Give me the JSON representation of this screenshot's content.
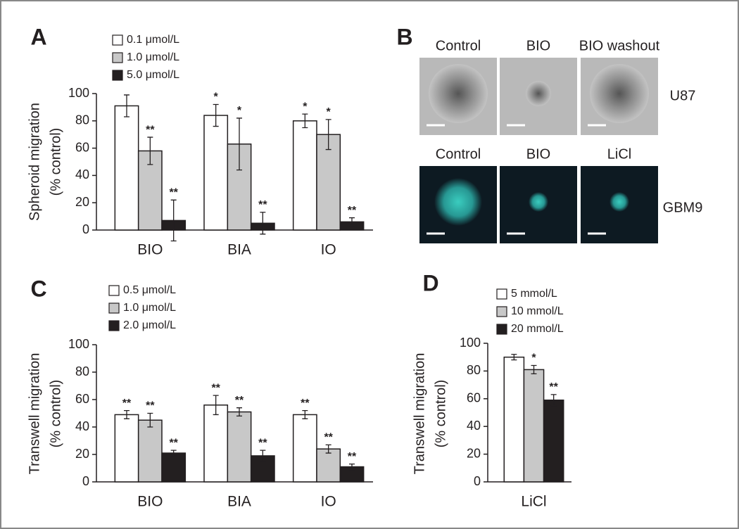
{
  "chart_data": [
    {
      "type": "bar",
      "panel": "A",
      "y_label": [
        "Spheroid migration",
        "(% control)"
      ],
      "categories": [
        "BIO",
        "BIA",
        "IO"
      ],
      "ylim": [
        0,
        100
      ],
      "yticks": [
        0,
        20,
        40,
        60,
        80,
        100
      ],
      "series": [
        {
          "name": "0.1 μmol/L",
          "color": "#ffffff",
          "values": [
            91,
            84,
            80
          ],
          "errors": [
            8,
            8,
            5
          ],
          "annotations": [
            null,
            "*",
            "*"
          ]
        },
        {
          "name": "1.0 μmol/L",
          "color": "#c8c8c8",
          "values": [
            58,
            63,
            70
          ],
          "errors": [
            10,
            19,
            11
          ],
          "annotations": [
            "**",
            "*",
            "*"
          ]
        },
        {
          "name": "5.0 μmol/L",
          "color": "#231f20",
          "values": [
            7,
            5,
            6
          ],
          "errors": [
            15,
            8,
            3
          ],
          "annotations": [
            "**",
            "**",
            "**"
          ]
        }
      ]
    },
    {
      "type": "bar",
      "panel": "C",
      "y_label": [
        "Transwell migration",
        "(% control)"
      ],
      "categories": [
        "BIO",
        "BIA",
        "IO"
      ],
      "ylim": [
        0,
        100
      ],
      "yticks": [
        0,
        20,
        40,
        60,
        80,
        100
      ],
      "series": [
        {
          "name": "0.5 μmol/L",
          "color": "#ffffff",
          "values": [
            49,
            56,
            49
          ],
          "errors": [
            3,
            7,
            3
          ],
          "annotations": [
            "**",
            "**",
            "**"
          ]
        },
        {
          "name": "1.0 μmol/L",
          "color": "#c8c8c8",
          "values": [
            45,
            51,
            24
          ],
          "errors": [
            5,
            3,
            3
          ],
          "annotations": [
            "**",
            "**",
            "**"
          ]
        },
        {
          "name": "2.0 μmol/L",
          "color": "#231f20",
          "values": [
            21,
            19,
            11
          ],
          "errors": [
            2,
            4,
            2
          ],
          "annotations": [
            "**",
            "**",
            "**"
          ]
        }
      ]
    },
    {
      "type": "bar",
      "panel": "D",
      "y_label": [
        "Transwell migration",
        "(% control)"
      ],
      "categories": [
        "LiCl"
      ],
      "ylim": [
        0,
        100
      ],
      "yticks": [
        0,
        20,
        40,
        60,
        80,
        100
      ],
      "series": [
        {
          "name": "5 mmol/L",
          "color": "#ffffff",
          "values": [
            90
          ],
          "errors": [
            2
          ],
          "annotations": [
            null
          ]
        },
        {
          "name": "10 mmol/L",
          "color": "#c8c8c8",
          "values": [
            81
          ],
          "errors": [
            3
          ],
          "annotations": [
            "*"
          ]
        },
        {
          "name": "20 mmol/L",
          "color": "#231f20",
          "values": [
            59
          ],
          "errors": [
            4
          ],
          "annotations": [
            "**"
          ]
        }
      ]
    }
  ],
  "panel_b": {
    "panel": "B",
    "rows": [
      {
        "label": "U87",
        "columns": [
          "Control",
          "BIO",
          "BIO washout"
        ]
      },
      {
        "label": "GBM9",
        "columns": [
          "Control",
          "BIO",
          "LiCl"
        ]
      }
    ]
  }
}
